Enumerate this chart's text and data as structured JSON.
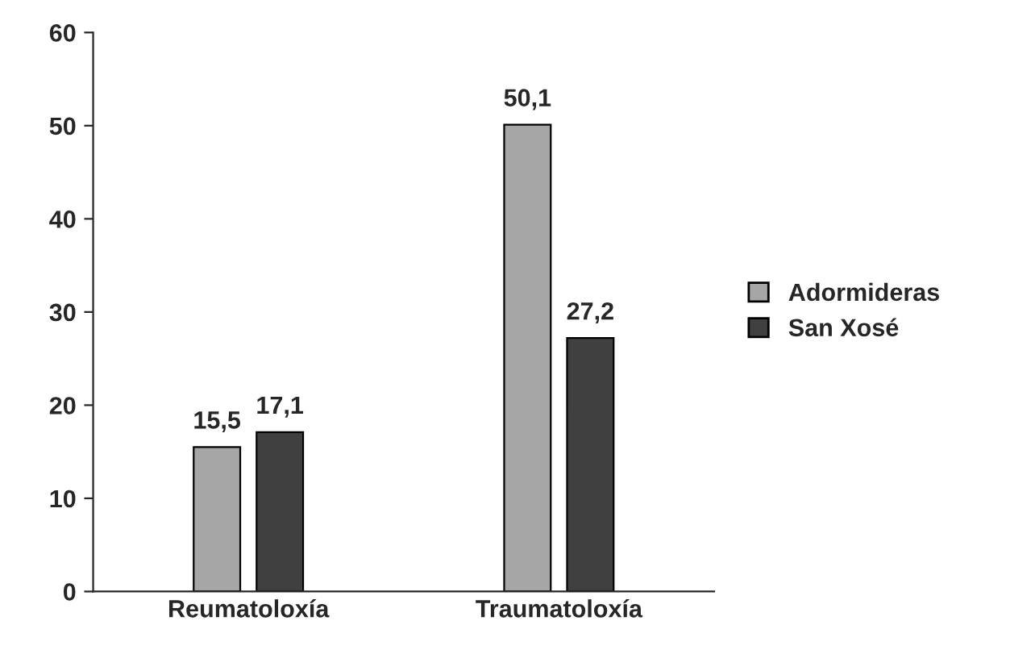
{
  "chart_data": {
    "type": "bar",
    "categories": [
      "Reumatoloxía",
      "Traumatoloxía"
    ],
    "series": [
      {
        "name": "Adormideras",
        "color": "#a6a6a6",
        "values": [
          15.5,
          50.1
        ],
        "value_labels": [
          "15,5",
          "50,1"
        ]
      },
      {
        "name": "San Xosé",
        "color": "#404040",
        "values": [
          17.1,
          27.2
        ],
        "value_labels": [
          "17,1",
          "27,2"
        ]
      }
    ],
    "ylim": [
      0,
      60
    ],
    "yticks": [
      0,
      10,
      20,
      30,
      40,
      50,
      60
    ],
    "grid": false,
    "legend": "right"
  }
}
